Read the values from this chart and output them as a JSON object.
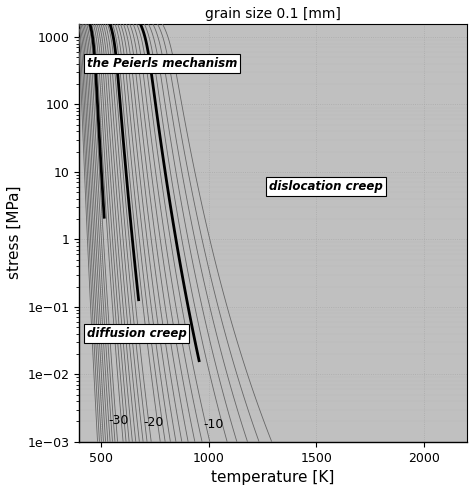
{
  "title": "grain size 0.1 [mm]",
  "xlabel": "temperature [K]",
  "ylabel": "stress [MPa]",
  "T_min": 400,
  "T_max": 2250,
  "log_sigma_min": -3.0,
  "log_sigma_max": 3.2,
  "label_Peierls": "the Peierls mechanism",
  "label_dislocation": "dislocation creep",
  "label_diffusion": "diffusion creep",
  "background_color": "#ffffff",
  "contour_color_thin": "#666666",
  "contour_color_bold": "#000000",
  "grid_color": "#aaaaaa",
  "color_peierls": "#ffffff",
  "color_dislocation": "#c8c8c8",
  "color_diffusion": "#e8e8e8"
}
